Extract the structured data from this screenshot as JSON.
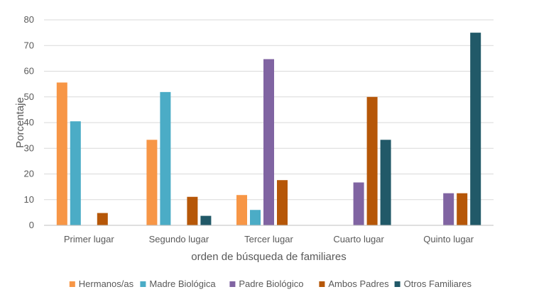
{
  "chart_data": {
    "type": "bar",
    "title": "",
    "xlabel": "orden de búsqueda de familiares",
    "ylabel": "Porcentaje",
    "ylim": [
      0,
      80
    ],
    "yticks": [
      0,
      10,
      20,
      30,
      40,
      50,
      60,
      70,
      80
    ],
    "grid": true,
    "legend_position": "bottom",
    "categories": [
      "Primer lugar",
      "Segundo lugar",
      "Tercer lugar",
      "Cuarto lugar",
      "Quinto lugar"
    ],
    "series": [
      {
        "name": "Hermanos/as",
        "color": "#F79646",
        "values": [
          55.6,
          33.3,
          11.8,
          0,
          0
        ]
      },
      {
        "name": "Madre Biológica",
        "color": "#4BACC6",
        "values": [
          40.5,
          51.9,
          6.0,
          0,
          0
        ]
      },
      {
        "name": "Padre Biológico",
        "color": "#8064A2",
        "values": [
          0,
          0,
          64.7,
          16.7,
          12.5
        ]
      },
      {
        "name": "Ambos Padres",
        "color": "#B65708",
        "values": [
          4.8,
          11.1,
          17.6,
          50.0,
          12.5
        ]
      },
      {
        "name": "Otros Familiares",
        "color": "#215968",
        "values": [
          0,
          3.7,
          0,
          33.3,
          75.0
        ]
      }
    ]
  }
}
